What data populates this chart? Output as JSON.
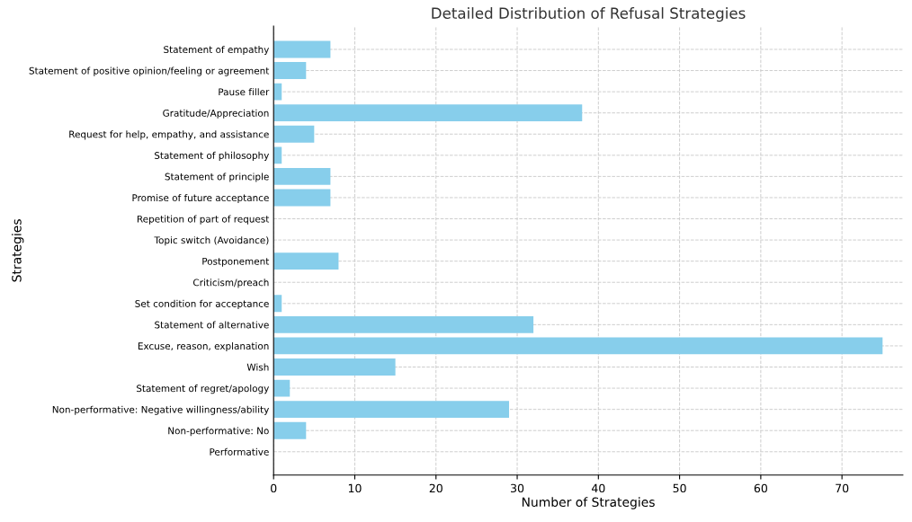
{
  "chart_data": {
    "type": "bar",
    "orientation": "horizontal",
    "title": "Detailed Distribution of Refusal Strategies",
    "xlabel": "Number of Strategies",
    "ylabel": "Strategies",
    "categories": [
      "Statement of empathy",
      "Statement of positive opinion/feeling or agreement",
      "Pause filler",
      "Gratitude/Appreciation",
      "Request for help, empathy, and assistance",
      "Statement of philosophy",
      "Statement of principle",
      "Promise of future acceptance",
      "Repetition of part of request",
      "Topic switch (Avoidance)",
      "Postponement",
      "Criticism/preach",
      "Set condition for acceptance",
      "Statement of alternative",
      "Excuse, reason, explanation",
      "Wish",
      "Statement of regret/apology",
      "Non-performative: Negative willingness/ability",
      "Non-performative: No",
      "Performative"
    ],
    "values": [
      7,
      4,
      1,
      38,
      5,
      1,
      7,
      7,
      0,
      0,
      8,
      0,
      1,
      32,
      75,
      15,
      2,
      29,
      4,
      0
    ],
    "color": "#87ceeb",
    "xlim": [
      0,
      77.5
    ],
    "xticks": [
      0,
      10,
      20,
      30,
      40,
      50,
      60,
      70
    ],
    "grid": true,
    "line_style": "dashed"
  }
}
